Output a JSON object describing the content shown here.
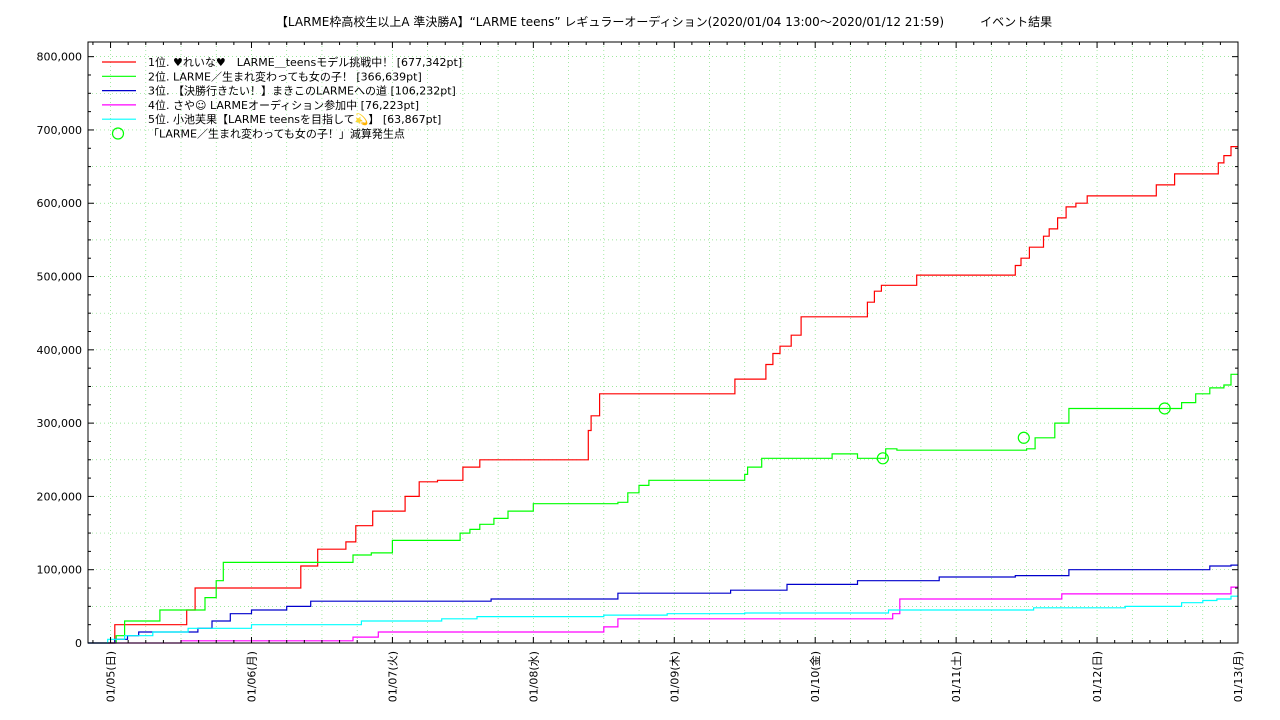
{
  "chart_data": {
    "type": "line",
    "title": "【LARME枠高校生以上A 準決勝A】“LARME teens” レギュラーオーディション(2020/01/04 13:00〜2020/01/12 21:59)　　　イベント結果",
    "xlabel": "",
    "ylabel": "",
    "x_unit": "days since 2020/01/04 00:00",
    "xlim": [
      0.84,
      9.0
    ],
    "ylim": [
      0,
      820000
    ],
    "yticks": [
      0,
      100000,
      200000,
      300000,
      400000,
      500000,
      600000,
      700000,
      800000
    ],
    "ytick_labels": [
      "0",
      "100,000",
      "200,000",
      "300,000",
      "400,000",
      "500,000",
      "600,000",
      "700,000",
      "800,000"
    ],
    "xticks": [
      1,
      2,
      3,
      4,
      5,
      6,
      7,
      8,
      9
    ],
    "xtick_labels": [
      "01/05(日)",
      "01/06(月)",
      "01/07(火)",
      "01/08(水)",
      "01/09(木)",
      "01/10(金)",
      "01/11(土)",
      "01/12(日)",
      "01/13(月)"
    ],
    "grid": true,
    "legend_position": "top-left",
    "series": [
      {
        "name": "1位. ♥れいな♥　LARME＿teensモデル挑戦中！ [677,342pt]",
        "color": "#ff0000",
        "x": [
          0.84,
          0.98,
          1.03,
          1.12,
          1.5,
          1.54,
          1.6,
          1.72,
          2.0,
          2.2,
          2.35,
          2.47,
          2.52,
          2.56,
          2.58,
          2.62,
          2.67,
          2.74,
          2.86,
          2.92,
          3.05,
          3.09,
          3.19,
          3.32,
          3.5,
          3.62,
          3.68,
          3.7,
          3.74,
          3.78,
          3.85,
          3.99,
          4.2,
          4.35,
          4.39,
          4.41,
          4.47,
          4.53,
          4.63,
          4.82,
          5.0,
          5.2,
          5.42,
          5.43,
          5.6,
          5.65,
          5.7,
          5.75,
          5.83,
          5.9,
          6.0,
          6.3,
          6.37,
          6.42,
          6.47,
          6.5,
          6.55,
          6.62,
          6.72,
          7.0,
          7.3,
          7.42,
          7.46,
          7.52,
          7.62,
          7.66,
          7.72,
          7.78,
          7.85,
          7.93,
          8.05,
          8.3,
          8.35,
          8.42,
          8.55,
          8.8,
          8.83,
          8.86,
          8.9,
          8.95,
          9.0
        ],
        "y": [
          0,
          0,
          25000,
          25000,
          25000,
          45000,
          75000,
          75000,
          75000,
          75000,
          105000,
          128000,
          128000,
          128000,
          128000,
          128000,
          138000,
          160000,
          180000,
          180000,
          180000,
          200000,
          220000,
          222000,
          240000,
          250000,
          250000,
          250000,
          250000,
          250000,
          250000,
          250000,
          250000,
          250000,
          290000,
          310000,
          340000,
          340000,
          340000,
          340000,
          340000,
          340000,
          340000,
          360000,
          360000,
          380000,
          395000,
          405000,
          420000,
          445000,
          445000,
          445000,
          465000,
          480000,
          488000,
          488000,
          488000,
          488000,
          502000,
          502000,
          502000,
          515000,
          525000,
          540000,
          555000,
          565000,
          580000,
          595000,
          600000,
          610000,
          610000,
          610000,
          610000,
          625000,
          640000,
          640000,
          640000,
          655000,
          665000,
          677342,
          677342
        ]
      },
      {
        "name": "2位. LARME／生まれ変わっても女の子！ [366,639pt]",
        "color": "#00ff00",
        "x": [
          0.84,
          1.0,
          1.04,
          1.1,
          1.35,
          1.5,
          1.6,
          1.67,
          1.75,
          1.8,
          2.0,
          2.3,
          2.55,
          2.62,
          2.72,
          2.85,
          3.0,
          3.2,
          3.3,
          3.42,
          3.48,
          3.55,
          3.62,
          3.72,
          3.82,
          4.0,
          4.15,
          4.2,
          4.25,
          4.5,
          4.6,
          4.67,
          4.75,
          4.82,
          5.0,
          5.2,
          5.25,
          5.38,
          5.5,
          5.52,
          5.62,
          5.8,
          6.0,
          6.12,
          6.2,
          6.3,
          6.45,
          6.5,
          6.58,
          6.62,
          6.66,
          6.72,
          6.8,
          6.9,
          7.0,
          7.3,
          7.42,
          7.46,
          7.5,
          7.56,
          7.7,
          7.8,
          7.9,
          7.97,
          8.05,
          8.2,
          8.35,
          8.42,
          8.5,
          8.55,
          8.6,
          8.7,
          8.8,
          8.9,
          8.95,
          9.0
        ],
        "y": [
          0,
          0,
          10000,
          30000,
          45000,
          45000,
          45000,
          62000,
          85000,
          110000,
          110000,
          110000,
          110000,
          110000,
          120000,
          123000,
          140000,
          140000,
          140000,
          140000,
          150000,
          155000,
          162000,
          170000,
          180000,
          190000,
          190000,
          190000,
          190000,
          190000,
          192000,
          205000,
          215000,
          222000,
          222000,
          222000,
          222000,
          222000,
          230000,
          240000,
          252000,
          252000,
          252000,
          258000,
          258000,
          252000,
          252000,
          265000,
          263000,
          263000,
          263000,
          263000,
          263000,
          263000,
          263000,
          263000,
          263000,
          263000,
          265000,
          280000,
          300000,
          320000,
          320000,
          320000,
          320000,
          320000,
          320000,
          320000,
          320000,
          320000,
          328000,
          340000,
          348000,
          352000,
          366639,
          366639
        ]
      },
      {
        "name": "3位. 【決勝行きたい！】まきこのLARMEへの道 [106,232pt]",
        "color": "#0000cc",
        "x": [
          0.84,
          0.98,
          1.03,
          1.12,
          1.2,
          1.4,
          1.5,
          1.62,
          1.72,
          1.85,
          2.0,
          2.25,
          2.42,
          2.6,
          3.0,
          3.5,
          3.7,
          4.0,
          4.5,
          4.6,
          4.95,
          5.0,
          5.4,
          5.5,
          5.8,
          6.0,
          6.3,
          6.55,
          6.66,
          6.7,
          6.88,
          7.0,
          7.2,
          7.4,
          7.42,
          7.5,
          7.72,
          7.8,
          8.0,
          8.2,
          8.5,
          8.7,
          8.8,
          8.95,
          9.0
        ],
        "y": [
          0,
          0,
          5000,
          10000,
          15000,
          15000,
          15000,
          20000,
          30000,
          40000,
          45000,
          50000,
          57000,
          57000,
          57000,
          57000,
          60000,
          60000,
          60000,
          68000,
          68000,
          68000,
          72000,
          72000,
          80000,
          80000,
          85000,
          85000,
          85000,
          85000,
          90000,
          90000,
          90000,
          90000,
          92000,
          92000,
          92000,
          100000,
          100000,
          100000,
          100000,
          100000,
          105000,
          106232,
          106232
        ]
      },
      {
        "name": "4位. さや☺ LARMEオーディション参加中 [76,223pt]",
        "color": "#ff00ff",
        "x": [
          0.84,
          1.0,
          1.1,
          1.5,
          2.0,
          2.5,
          2.72,
          2.9,
          3.5,
          3.75,
          3.95,
          4.05,
          4.2,
          4.5,
          4.6,
          4.95,
          5.0,
          6.0,
          6.2,
          6.5,
          6.55,
          6.6,
          7.0,
          7.5,
          7.75,
          8.0,
          8.5,
          8.6,
          8.95,
          9.0
        ],
        "y": [
          0,
          0,
          0,
          3000,
          3000,
          3000,
          8000,
          15000,
          15000,
          15000,
          15000,
          15000,
          15000,
          22000,
          33000,
          33000,
          33000,
          33000,
          33000,
          33000,
          40000,
          60000,
          60000,
          60000,
          67000,
          67000,
          67000,
          67000,
          76223,
          76223
        ]
      },
      {
        "name": "5位. 小池芙果【LARME teensを目指して💫】 [63,867pt]",
        "color": "#00ffff",
        "x": [
          0.84,
          0.96,
          0.98,
          1.05,
          1.1,
          1.3,
          1.5,
          1.55,
          2.0,
          2.2,
          2.3,
          2.5,
          2.78,
          3.0,
          3.35,
          3.5,
          3.6,
          3.8,
          4.0,
          4.3,
          4.5,
          4.6,
          4.95,
          5.0,
          5.3,
          5.5,
          5.9,
          6.0,
          6.3,
          6.5,
          6.52,
          6.65,
          7.0,
          7.5,
          7.55,
          8.0,
          8.2,
          8.5,
          8.6,
          8.75,
          8.85,
          8.95,
          9.0
        ],
        "y": [
          0,
          0,
          5000,
          5000,
          10000,
          15000,
          15000,
          20000,
          25000,
          25000,
          25000,
          25000,
          30000,
          30000,
          33000,
          33000,
          36000,
          36000,
          36000,
          36000,
          38000,
          38000,
          40000,
          40000,
          40000,
          41000,
          41000,
          41000,
          41000,
          41000,
          45000,
          45000,
          45000,
          45000,
          48000,
          48000,
          50000,
          50000,
          55000,
          58000,
          60000,
          63867,
          63867
        ]
      }
    ],
    "markers": {
      "name": "「LARME／生まれ変わっても女の子！」減算発生点",
      "color": "#00ff00",
      "x": [
        6.48,
        7.48,
        8.48
      ],
      "y": [
        252000,
        280000,
        320000
      ]
    }
  }
}
